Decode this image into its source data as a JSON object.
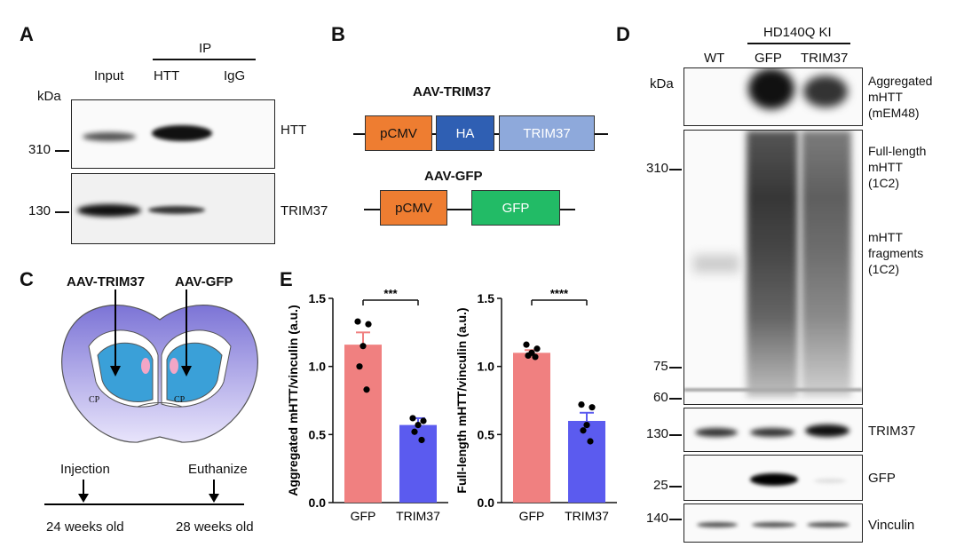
{
  "panelA": {
    "label": "A",
    "ip_header": "IP",
    "lanes": [
      "Input",
      "HTT",
      "IgG"
    ],
    "kda": "kDa",
    "markers": [
      "310",
      "130"
    ],
    "blots": [
      "HTT",
      "TRIM37"
    ]
  },
  "panelB": {
    "label": "B",
    "construct1": {
      "title": "AAV-TRIM37",
      "parts": [
        "pCMV",
        "HA",
        "TRIM37"
      ]
    },
    "construct2": {
      "title": "AAV-GFP",
      "parts": [
        "pCMV",
        "GFP"
      ]
    }
  },
  "panelC": {
    "label": "C",
    "left_injection": "AAV-TRIM37",
    "right_injection": "AAV-GFP",
    "region": "CP",
    "timeline": {
      "start_event": "Injection",
      "end_event": "Euthanize",
      "start_age": "24 weeks old",
      "end_age": "28 weeks old"
    }
  },
  "panelD": {
    "label": "D",
    "group_header": "HD140Q KI",
    "lanes": [
      "WT",
      "GFP",
      "TRIM37"
    ],
    "kda": "kDa",
    "markers": [
      "310",
      "75",
      "60",
      "130",
      "25",
      "140"
    ],
    "labels": {
      "aggregated": [
        "Aggregated",
        "mHTT",
        "(mEM48)"
      ],
      "fulllength": [
        "Full-length",
        "mHTT",
        "(1C2)"
      ],
      "fragments": [
        "mHTT",
        "fragments",
        "(1C2)"
      ],
      "trim37": "TRIM37",
      "gfp": "GFP",
      "vinculin": "Vinculin"
    }
  },
  "panelE": {
    "label": "E"
  },
  "colors": {
    "gfp_bar": "#f08080",
    "trim_bar": "#5b5bef",
    "pcmv": "#ee7d31",
    "ha": "#2f5fb3",
    "trim37_box": "#8ea9db",
    "gfp_box": "#22bb66"
  },
  "chart_data": [
    {
      "type": "bar",
      "title": "",
      "xlabel": "",
      "ylabel": "Aggregated mHTT/vinculin (a.u.)",
      "categories": [
        "GFP",
        "TRIM37"
      ],
      "values": [
        1.16,
        0.57
      ],
      "errors": [
        0.09,
        0.05
      ],
      "points": [
        [
          1.33,
          1.31,
          1.15,
          1.0,
          0.83
        ],
        [
          0.62,
          0.6,
          0.57,
          0.52,
          0.46
        ]
      ],
      "ylim": [
        0,
        1.5
      ],
      "yticks": [
        "0.0",
        "0.5",
        "1.0",
        "1.5"
      ],
      "significance": "***"
    },
    {
      "type": "bar",
      "title": "",
      "xlabel": "",
      "ylabel": "Full-length mHTT/vinculin (a.u.)",
      "categories": [
        "GFP",
        "TRIM37"
      ],
      "values": [
        1.1,
        0.6
      ],
      "errors": [
        0.02,
        0.06
      ],
      "points": [
        [
          1.16,
          1.13,
          1.1,
          1.08,
          1.07
        ],
        [
          0.72,
          0.7,
          0.57,
          0.53,
          0.45
        ]
      ],
      "ylim": [
        0,
        1.5
      ],
      "yticks": [
        "0.0",
        "0.5",
        "1.0",
        "1.5"
      ],
      "significance": "****"
    }
  ]
}
